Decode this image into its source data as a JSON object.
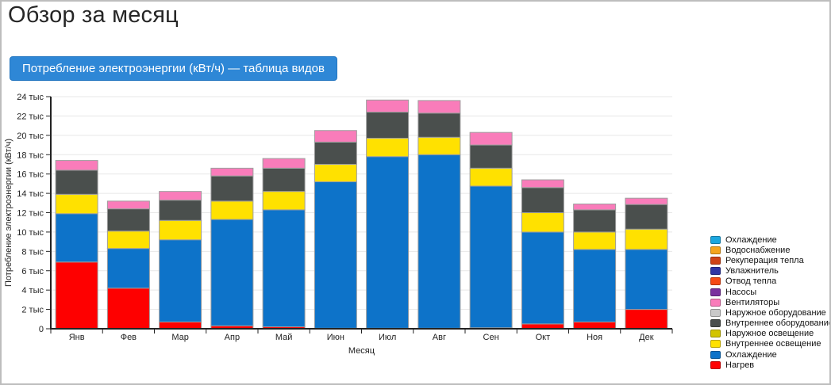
{
  "page": {
    "title": "Обзор за месяц"
  },
  "toolbar": {
    "table_button_label": "Потребление электроэнергии (кВт/ч) — таблица видов",
    "button_color": "#2e87d6"
  },
  "chart_data": {
    "type": "bar",
    "stacked": true,
    "title": "",
    "xlabel": "Месяц",
    "ylabel": "Потребление электроэнергии (кВт/ч)",
    "ylim": [
      0,
      24000
    ],
    "ytick_step": 2000,
    "ytick_suffix": " тыс",
    "ytick_zero_label": "0",
    "grid": true,
    "legend_position": "right",
    "categories": [
      "Янв",
      "Фев",
      "Мар",
      "Апр",
      "Май",
      "Июн",
      "Июл",
      "Авг",
      "Сен",
      "Окт",
      "Ноя",
      "Дек"
    ],
    "series": [
      {
        "name": "Нагрев",
        "color": "#fe0000",
        "values": [
          6900,
          4200,
          700,
          300,
          200,
          50,
          50,
          50,
          100,
          500,
          700,
          2000
        ]
      },
      {
        "name": "Охлаждение",
        "color": "#0d73c9",
        "values": [
          5000,
          4100,
          8500,
          11000,
          12100,
          15150,
          17750,
          17950,
          14650,
          9500,
          7500,
          6200
        ]
      },
      {
        "name": "Внутреннее освещение",
        "color": "#ffe100",
        "values": [
          2000,
          1800,
          2000,
          1900,
          1900,
          1800,
          1900,
          1800,
          1850,
          2000,
          1800,
          2100
        ]
      },
      {
        "name": "Внутреннее оборудование",
        "color": "#4a4f4d",
        "values": [
          2500,
          2300,
          2100,
          2600,
          2400,
          2300,
          2700,
          2500,
          2400,
          2600,
          2300,
          2550
        ]
      },
      {
        "name": "Вентиляторы",
        "color": "#f97cba",
        "values": [
          1000,
          800,
          900,
          800,
          1000,
          1200,
          1250,
          1300,
          1300,
          800,
          600,
          650
        ]
      }
    ],
    "legend": [
      {
        "label": "Охлаждение",
        "color": "#1ba7df"
      },
      {
        "label": "Водоснабжение",
        "color": "#f5a51d"
      },
      {
        "label": "Рекуперация тепла",
        "color": "#cf4317"
      },
      {
        "label": "Увлажнитель",
        "color": "#2f35a5"
      },
      {
        "label": "Отвод тепла",
        "color": "#f64a16"
      },
      {
        "label": "Насосы",
        "color": "#7a2f9e"
      },
      {
        "label": "Вентиляторы",
        "color": "#f97cba"
      },
      {
        "label": "Наружное оборудование",
        "color": "#c9c9c9"
      },
      {
        "label": "Внутреннее оборудование",
        "color": "#4a4f4d"
      },
      {
        "label": "Наружное освещение",
        "color": "#d2c400"
      },
      {
        "label": "Внутреннее освещение",
        "color": "#ffe100"
      },
      {
        "label": "Охлаждение",
        "color": "#0d73c9"
      },
      {
        "label": "Нагрев",
        "color": "#fe0000"
      }
    ]
  }
}
